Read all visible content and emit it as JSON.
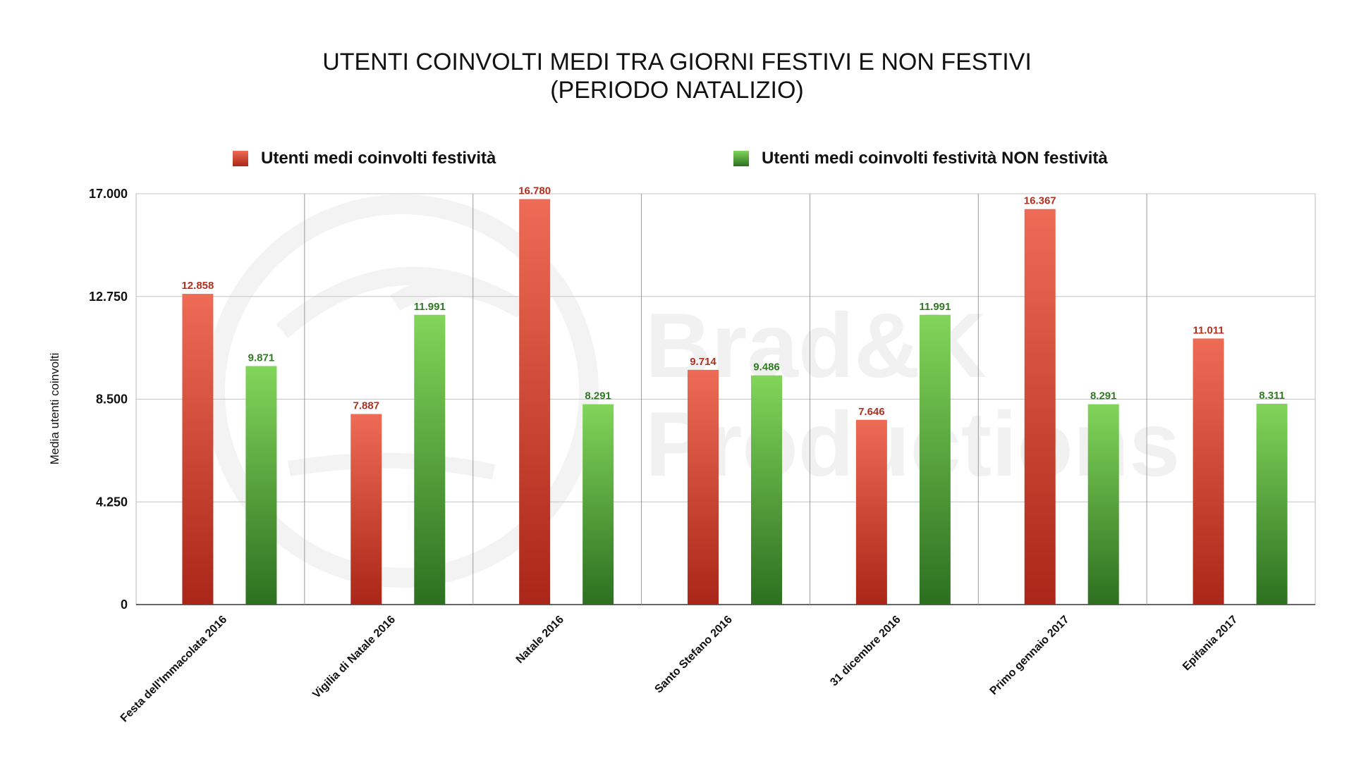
{
  "chart_data": {
    "type": "bar",
    "title_lines": [
      "UTENTI COINVOLTI MEDI TRA GIORNI FESTIVI E NON FESTIVI",
      "(PERIODO NATALIZIO)"
    ],
    "xlabel": "",
    "ylabel": "Media utenti coinvolti",
    "ylim": [
      0,
      17000
    ],
    "yticks": [
      0,
      4250,
      8500,
      12750,
      17000
    ],
    "ytick_labels": [
      "0",
      "4.250",
      "8.500",
      "12.750",
      "17.000"
    ],
    "grid": true,
    "legend_position": "top",
    "categories": [
      "Festa dell'Immacolata 2016",
      "Vigilia di Natale 2016",
      "Natale 2016",
      "Santo Stefano 2016",
      "31 dicembre 2016",
      "Primo gennaio 2017",
      "Epifania 2017"
    ],
    "series": [
      {
        "name": "Utenti medi coinvolti festività",
        "color": "#c0392b",
        "color_light": "#ee6c56",
        "color_dark": "#aa2618",
        "label_color": "#b0301f",
        "values": [
          12858,
          7887,
          16780,
          9714,
          7646,
          16367,
          11011
        ],
        "value_labels": [
          "12.858",
          "7.887",
          "16.780",
          "9.714",
          "7.646",
          "16.367",
          "11.011"
        ]
      },
      {
        "name": "Utenti medi coinvolti festività NON festività",
        "color": "#4caf37",
        "color_light": "#82d55a",
        "color_dark": "#2c7020",
        "label_color": "#2f7a22",
        "values": [
          9871,
          11991,
          8291,
          9486,
          11991,
          8291,
          8311
        ],
        "value_labels": [
          "9.871",
          "11.991",
          "8.291",
          "9.486",
          "11.991",
          "8.291",
          "8.311"
        ]
      }
    ]
  }
}
